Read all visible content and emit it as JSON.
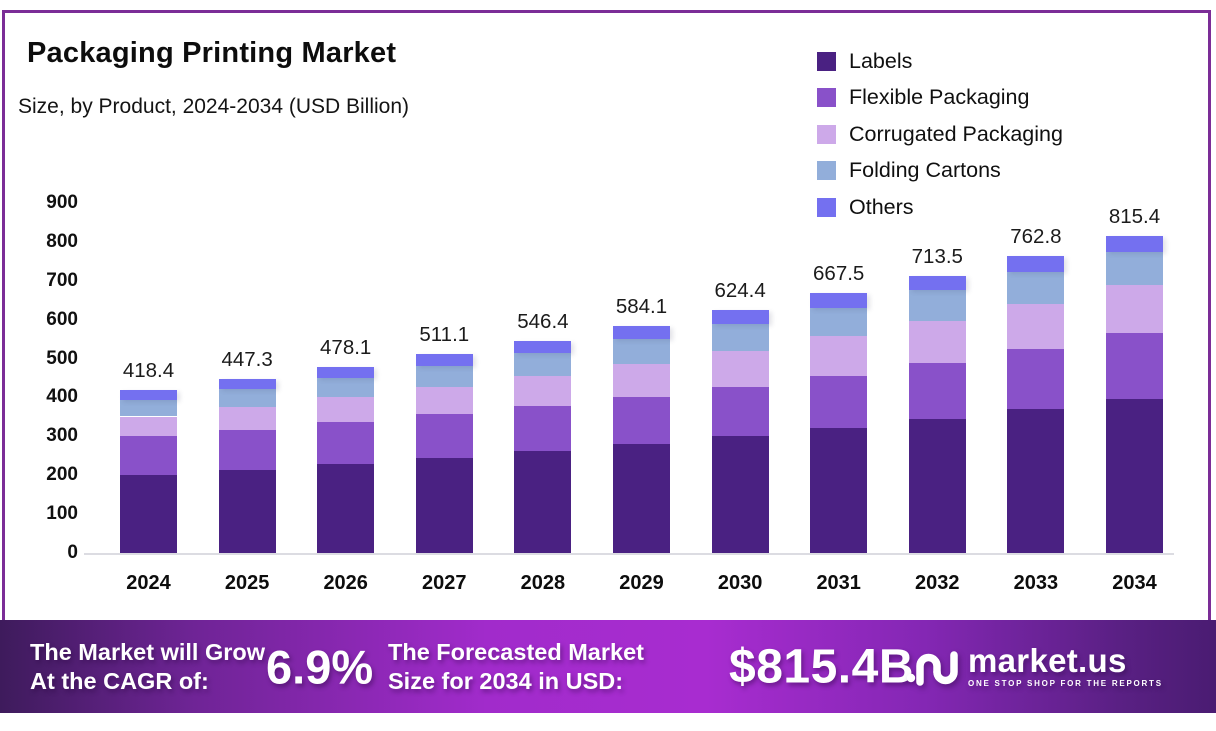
{
  "title": "Packaging Printing Market",
  "subtitle": "Size, by Product, 2024-2034 (USD Billion)",
  "chart_data": {
    "type": "bar",
    "stacked": true,
    "title": "Packaging Printing Market",
    "subtitle": "Size, by Product, 2024-2034 (USD Billion)",
    "unit": "USD Billion",
    "categories": [
      "2024",
      "2025",
      "2026",
      "2027",
      "2028",
      "2029",
      "2030",
      "2031",
      "2032",
      "2033",
      "2034"
    ],
    "totals": [
      418.4,
      447.3,
      478.1,
      511.1,
      546.4,
      584.1,
      624.4,
      667.5,
      713.5,
      762.8,
      815.4
    ],
    "series": [
      {
        "name": "Labels",
        "color": "#4A2182",
        "values": [
          200.0,
          214.5,
          229.5,
          245.5,
          262.5,
          281.0,
          300.5,
          322.0,
          344.0,
          369.5,
          397.0
        ]
      },
      {
        "name": "Flexible Packaging",
        "color": "#8951C9",
        "values": [
          100.0,
          103.0,
          107.0,
          111.5,
          116.0,
          120.0,
          126.5,
          134.0,
          143.5,
          155.0,
          169.0
        ]
      },
      {
        "name": "Corrugated Packaging",
        "color": "#CDA9E9",
        "values": [
          51.0,
          57.5,
          64.0,
          71.0,
          77.5,
          84.0,
          92.5,
          103.0,
          109.0,
          115.5,
          122.0
        ]
      },
      {
        "name": "Folding Cartons",
        "color": "#92AEDA",
        "values": [
          43.0,
          46.0,
          49.5,
          53.0,
          58.0,
          66.0,
          70.0,
          72.0,
          79.0,
          83.0,
          86.0
        ]
      },
      {
        "name": "Others",
        "color": "#7470F0",
        "values": [
          24.4,
          26.3,
          28.1,
          30.1,
          32.4,
          33.1,
          34.9,
          36.5,
          38.0,
          39.8,
          41.4
        ]
      }
    ],
    "ylim": [
      0,
      900
    ],
    "yticks": [
      0,
      100,
      200,
      300,
      400,
      500,
      600,
      700,
      800,
      900
    ],
    "grid": false,
    "legend_position": "top-right",
    "bar_total_labels_shown": true
  },
  "banner": {
    "cagr_text_line1": "The Market will Grow",
    "cagr_text_line2": "At the CAGR of:",
    "cagr_value": "6.9%",
    "forecast_text_line1": "The Forecasted Market",
    "forecast_text_line2": "Size for 2034 in USD:",
    "forecast_value": "$815.4B",
    "brand_name": "market.us",
    "brand_tagline": "ONE STOP SHOP FOR THE REPORTS"
  },
  "colors": {
    "card_border": "#7B2D97",
    "banner_gradient_left": "#3E1B5C",
    "banner_gradient_mid": "#A82CD0",
    "banner_gradient_right": "#4A1C72",
    "axis_text": "#101010",
    "value_label": "#1B1B1B",
    "baseline": "#DCDCE2"
  }
}
